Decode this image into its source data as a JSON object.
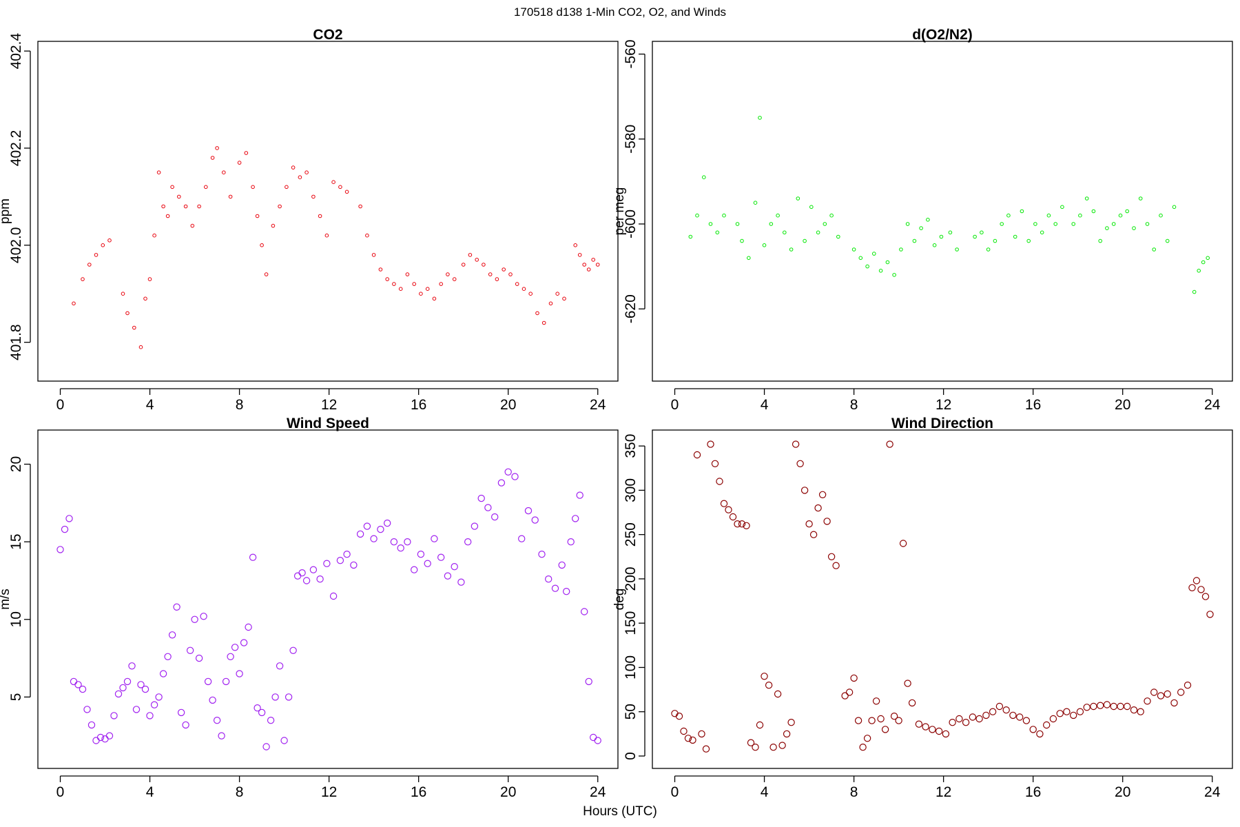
{
  "figure": {
    "title": "170518   d138   1-Min CO2, O2, and Winds",
    "xlabel": "Hours (UTC)"
  },
  "chart_data": [
    {
      "type": "scatter",
      "title": "CO2",
      "xlabel": "Hours (UTC)",
      "ylabel": "ppm",
      "xlim": [
        -1,
        24.9
      ],
      "ylim": [
        401.72,
        402.42
      ],
      "xticks": [
        0,
        4,
        8,
        12,
        16,
        20,
        24
      ],
      "yticks": [
        401.8,
        402.0,
        402.2,
        402.4
      ],
      "ytick_labels": [
        "401.8",
        "402.0",
        "402.2",
        "402.4"
      ],
      "color": "#e8000b",
      "marker": "open-circle",
      "series": [
        {
          "x": [
            0.6,
            1.0,
            1.3,
            1.6,
            1.9,
            2.2,
            2.8,
            3.0,
            3.3,
            3.6,
            3.8,
            4.0,
            4.2,
            4.4,
            4.6,
            4.8,
            5.0,
            5.3,
            5.6,
            5.9,
            6.2,
            6.5,
            6.8,
            7.0,
            7.3,
            7.6,
            8.0,
            8.3,
            8.6,
            8.8,
            9.0,
            9.2,
            9.5,
            9.8,
            10.1,
            10.4,
            10.7,
            11.0,
            11.3,
            11.6,
            11.9,
            12.2,
            12.5,
            12.8,
            13.4,
            13.7,
            14.0,
            14.3,
            14.6,
            14.9,
            15.2,
            15.5,
            15.8,
            16.1,
            16.4,
            16.7,
            17.0,
            17.3,
            17.6,
            18.0,
            18.3,
            18.6,
            18.9,
            19.2,
            19.5,
            19.8,
            20.1,
            20.4,
            20.7,
            21.0,
            21.3,
            21.6,
            21.9,
            22.2,
            22.5,
            23.0,
            23.2,
            23.4,
            23.6,
            23.8,
            24.0
          ],
          "y": [
            401.88,
            401.93,
            401.96,
            401.98,
            402.0,
            402.01,
            401.9,
            401.86,
            401.83,
            401.79,
            401.89,
            401.93,
            402.02,
            402.15,
            402.08,
            402.06,
            402.12,
            402.1,
            402.08,
            402.04,
            402.08,
            402.12,
            402.18,
            402.2,
            402.15,
            402.1,
            402.17,
            402.19,
            402.12,
            402.06,
            402.0,
            401.94,
            402.04,
            402.08,
            402.12,
            402.16,
            402.14,
            402.15,
            402.1,
            402.06,
            402.02,
            402.13,
            402.12,
            402.11,
            402.08,
            402.02,
            401.98,
            401.95,
            401.93,
            401.92,
            401.91,
            401.94,
            401.92,
            401.9,
            401.91,
            401.89,
            401.92,
            401.94,
            401.93,
            401.96,
            401.98,
            401.97,
            401.96,
            401.94,
            401.93,
            401.95,
            401.94,
            401.92,
            401.91,
            401.9,
            401.86,
            401.84,
            401.88,
            401.9,
            401.89,
            402.0,
            401.98,
            401.96,
            401.95,
            401.97,
            401.96
          ]
        }
      ]
    },
    {
      "type": "scatter",
      "title": "d(O2/N2)",
      "xlabel": "Hours (UTC)",
      "ylabel": "per meg",
      "xlim": [
        -1,
        24.9
      ],
      "ylim": [
        -637,
        -557
      ],
      "xticks": [
        0,
        4,
        8,
        12,
        16,
        20,
        24
      ],
      "yticks": [
        -620,
        -600,
        -580,
        -560
      ],
      "ytick_labels": [
        "-620",
        "-600",
        "-580",
        "-560"
      ],
      "color": "#00e800",
      "marker": "open-circle",
      "series": [
        {
          "x": [
            0.7,
            1.0,
            1.3,
            1.6,
            1.9,
            2.2,
            2.8,
            3.0,
            3.3,
            3.6,
            3.8,
            4.0,
            4.3,
            4.6,
            4.9,
            5.2,
            5.5,
            5.8,
            6.1,
            6.4,
            6.7,
            7.0,
            7.3,
            8.0,
            8.3,
            8.6,
            8.9,
            9.2,
            9.5,
            9.8,
            10.1,
            10.4,
            10.7,
            11.0,
            11.3,
            11.6,
            11.9,
            12.3,
            12.6,
            13.4,
            13.7,
            14.0,
            14.3,
            14.6,
            14.9,
            15.2,
            15.5,
            15.8,
            16.1,
            16.4,
            16.7,
            17.0,
            17.3,
            17.8,
            18.1,
            18.4,
            18.7,
            19.0,
            19.3,
            19.6,
            19.9,
            20.2,
            20.5,
            20.8,
            21.1,
            21.4,
            21.7,
            22.0,
            22.3,
            23.2,
            23.4,
            23.6,
            23.8
          ],
          "y": [
            -603,
            -598,
            -589,
            -600,
            -602,
            -598,
            -600,
            -604,
            -608,
            -595,
            -575,
            -605,
            -600,
            -598,
            -602,
            -606,
            -594,
            -604,
            -596,
            -602,
            -600,
            -598,
            -603,
            -606,
            -608,
            -610,
            -607,
            -611,
            -609,
            -612,
            -606,
            -600,
            -604,
            -601,
            -599,
            -605,
            -603,
            -602,
            -606,
            -603,
            -602,
            -606,
            -604,
            -600,
            -598,
            -603,
            -597,
            -604,
            -600,
            -602,
            -598,
            -600,
            -596,
            -600,
            -598,
            -594,
            -597,
            -604,
            -601,
            -600,
            -598,
            -597,
            -601,
            -594,
            -600,
            -606,
            -598,
            -604,
            -596,
            -616,
            -611,
            -609,
            -608
          ]
        }
      ]
    },
    {
      "type": "scatter",
      "title": "Wind Speed",
      "xlabel": "Hours (UTC)",
      "ylabel": "m/s",
      "xlim": [
        -1,
        24.9
      ],
      "ylim": [
        0.4,
        22.2
      ],
      "xticks": [
        0,
        4,
        8,
        12,
        16,
        20,
        24
      ],
      "yticks": [
        5,
        10,
        15,
        20
      ],
      "ytick_labels": [
        "5",
        "10",
        "15",
        "20"
      ],
      "color": "#a020f0",
      "marker": "open-circle",
      "series": [
        {
          "x": [
            0.0,
            0.2,
            0.4,
            0.6,
            0.8,
            1.0,
            1.2,
            1.4,
            1.6,
            1.8,
            2.0,
            2.2,
            2.4,
            2.6,
            2.8,
            3.0,
            3.2,
            3.4,
            3.6,
            3.8,
            4.0,
            4.2,
            4.4,
            4.6,
            4.8,
            5.0,
            5.2,
            5.4,
            5.6,
            5.8,
            6.0,
            6.2,
            6.4,
            6.6,
            6.8,
            7.0,
            7.2,
            7.4,
            7.6,
            7.8,
            8.0,
            8.2,
            8.4,
            8.6,
            8.8,
            9.0,
            9.2,
            9.4,
            9.6,
            9.8,
            10.0,
            10.2,
            10.4,
            10.6,
            10.8,
            11.0,
            11.3,
            11.6,
            11.9,
            12.2,
            12.5,
            12.8,
            13.1,
            13.4,
            13.7,
            14.0,
            14.3,
            14.6,
            14.9,
            15.2,
            15.5,
            15.8,
            16.1,
            16.4,
            16.7,
            17.0,
            17.3,
            17.6,
            17.9,
            18.2,
            18.5,
            18.8,
            19.1,
            19.4,
            19.7,
            20.0,
            20.3,
            20.6,
            20.9,
            21.2,
            21.5,
            21.8,
            22.1,
            22.4,
            22.6,
            22.8,
            23.0,
            23.2,
            23.4,
            23.6,
            23.8,
            24.0
          ],
          "y": [
            14.5,
            15.8,
            16.5,
            6.0,
            5.8,
            5.5,
            4.2,
            3.2,
            2.2,
            2.4,
            2.3,
            2.5,
            3.8,
            5.2,
            5.6,
            6.0,
            7.0,
            4.2,
            5.8,
            5.5,
            3.8,
            4.5,
            5.0,
            6.5,
            7.6,
            9.0,
            10.8,
            4.0,
            3.2,
            8.0,
            10.0,
            7.5,
            10.2,
            6.0,
            4.8,
            3.5,
            2.5,
            6.0,
            7.6,
            8.2,
            6.5,
            8.5,
            9.5,
            14.0,
            4.3,
            4.0,
            1.8,
            3.5,
            5.0,
            7.0,
            2.2,
            5.0,
            8.0,
            12.8,
            13.0,
            12.5,
            13.2,
            12.6,
            13.6,
            11.5,
            13.8,
            14.2,
            13.5,
            15.5,
            16.0,
            15.2,
            15.8,
            16.2,
            15.0,
            14.6,
            15.0,
            13.2,
            14.2,
            13.6,
            15.2,
            14.0,
            12.8,
            13.4,
            12.4,
            15.0,
            16.0,
            17.8,
            17.2,
            16.6,
            18.8,
            19.5,
            19.2,
            15.2,
            17.0,
            16.4,
            14.2,
            12.6,
            12.0,
            13.5,
            11.8,
            15.0,
            16.5,
            18.0,
            10.5,
            6.0,
            2.4,
            2.2
          ]
        }
      ]
    },
    {
      "type": "scatter",
      "title": "Wind Direction",
      "xlabel": "Hours (UTC)",
      "ylabel": "deg",
      "xlim": [
        -1,
        24.9
      ],
      "ylim": [
        -14,
        368
      ],
      "xticks": [
        0,
        4,
        8,
        12,
        16,
        20,
        24
      ],
      "yticks": [
        0,
        50,
        100,
        150,
        200,
        250,
        300,
        350
      ],
      "ytick_labels": [
        "0",
        "50",
        "100",
        "150",
        "200",
        "250",
        "300",
        "350"
      ],
      "color": "#8b0000",
      "marker": "open-circle",
      "series": [
        {
          "x": [
            0.0,
            0.2,
            0.4,
            0.6,
            0.8,
            1.0,
            1.2,
            1.4,
            1.6,
            1.8,
            2.0,
            2.2,
            2.4,
            2.6,
            2.8,
            3.0,
            3.2,
            3.4,
            3.6,
            3.8,
            4.0,
            4.2,
            4.4,
            4.6,
            4.8,
            5.0,
            5.2,
            5.4,
            5.6,
            5.8,
            6.0,
            6.2,
            6.4,
            6.6,
            6.8,
            7.0,
            7.2,
            7.6,
            7.8,
            8.0,
            8.2,
            8.4,
            8.6,
            8.8,
            9.0,
            9.2,
            9.4,
            9.6,
            9.8,
            10.0,
            10.2,
            10.4,
            10.6,
            10.9,
            11.2,
            11.5,
            11.8,
            12.1,
            12.4,
            12.7,
            13.0,
            13.3,
            13.6,
            13.9,
            14.2,
            14.5,
            14.8,
            15.1,
            15.4,
            15.7,
            16.0,
            16.3,
            16.6,
            16.9,
            17.2,
            17.5,
            17.8,
            18.1,
            18.4,
            18.7,
            19.0,
            19.3,
            19.6,
            19.9,
            20.2,
            20.5,
            20.8,
            21.1,
            21.4,
            21.7,
            22.0,
            22.3,
            22.6,
            22.9,
            23.1,
            23.3,
            23.5,
            23.7,
            23.9
          ],
          "y": [
            48,
            45,
            28,
            20,
            18,
            340,
            25,
            8,
            352,
            330,
            310,
            285,
            278,
            270,
            262,
            262,
            260,
            15,
            10,
            35,
            90,
            80,
            10,
            70,
            12,
            25,
            38,
            352,
            330,
            300,
            262,
            250,
            280,
            295,
            265,
            225,
            215,
            68,
            72,
            88,
            40,
            10,
            20,
            40,
            62,
            42,
            30,
            352,
            45,
            40,
            240,
            82,
            60,
            36,
            33,
            30,
            28,
            25,
            38,
            42,
            38,
            44,
            42,
            46,
            50,
            56,
            52,
            46,
            44,
            40,
            30,
            25,
            35,
            42,
            48,
            50,
            46,
            50,
            55,
            56,
            57,
            58,
            56,
            56,
            56,
            52,
            50,
            62,
            72,
            68,
            70,
            60,
            72,
            80,
            190,
            198,
            188,
            180,
            160
          ]
        }
      ]
    }
  ]
}
